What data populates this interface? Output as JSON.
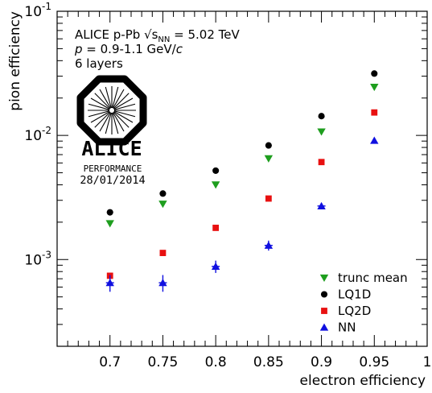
{
  "chart_data": {
    "type": "scatter",
    "xlabel": "electron efficiency",
    "ylabel": "pion efficiency",
    "xlim": [
      0.65,
      1.0
    ],
    "ylim": [
      0.0002,
      0.1
    ],
    "yscale": "log",
    "x_ticks": [
      "0.7",
      "0.75",
      "0.8",
      "0.85",
      "0.9",
      "0.95",
      "1"
    ],
    "y_ticks": [
      {
        "value": 0.1,
        "base": "10",
        "exp": "-1"
      },
      {
        "value": 0.01,
        "base": "10",
        "exp": "-2"
      },
      {
        "value": 0.001,
        "base": "10",
        "exp": "-3"
      }
    ],
    "legend_position": "bottom-right",
    "info": {
      "line1_pre": "ALICE p-Pb ",
      "line1_sqrt": "√",
      "line1_s": "s",
      "line1_sub": "NN",
      "line1_post": " = 5.02 TeV",
      "line2_p": "p",
      "line2_mid": " = 0.9-1.1 GeV/",
      "line2_c": "c",
      "line3": "6 layers"
    },
    "logo": {
      "word": "ALICE",
      "subtitle": "PERFORMANCE",
      "date": "28/01/2014"
    },
    "series": [
      {
        "name": "trunc mean",
        "marker": "triangle-down",
        "color": "#1e9e1e",
        "x": [
          0.7,
          0.75,
          0.8,
          0.85,
          0.9,
          0.95
        ],
        "y": [
          0.00195,
          0.0028,
          0.004,
          0.0065,
          0.0107,
          0.0245
        ],
        "err": [
          0,
          0,
          0,
          0,
          0,
          0
        ]
      },
      {
        "name": "LQ1D",
        "marker": "circle",
        "color": "#000000",
        "x": [
          0.7,
          0.75,
          0.8,
          0.85,
          0.9,
          0.95
        ],
        "y": [
          0.0024,
          0.0034,
          0.0052,
          0.0083,
          0.0143,
          0.0315
        ],
        "err": [
          0,
          0,
          0,
          0,
          0,
          0
        ]
      },
      {
        "name": "LQ2D",
        "marker": "square",
        "color": "#e81010",
        "x": [
          0.7,
          0.75,
          0.8,
          0.85,
          0.9,
          0.95
        ],
        "y": [
          0.00074,
          0.00113,
          0.0018,
          0.0031,
          0.0061,
          0.0153
        ],
        "err": [
          0,
          0,
          0,
          0,
          0,
          0
        ]
      },
      {
        "name": "NN",
        "marker": "triangle-up",
        "color": "#1010e0",
        "x": [
          0.7,
          0.75,
          0.8,
          0.85,
          0.9,
          0.95
        ],
        "y": [
          0.00065,
          0.00065,
          0.00088,
          0.0013,
          0.0027,
          0.0091
        ],
        "err": [
          0.0001,
          0.0001,
          0.0001,
          0.00012,
          0.00016,
          0
        ]
      }
    ]
  }
}
